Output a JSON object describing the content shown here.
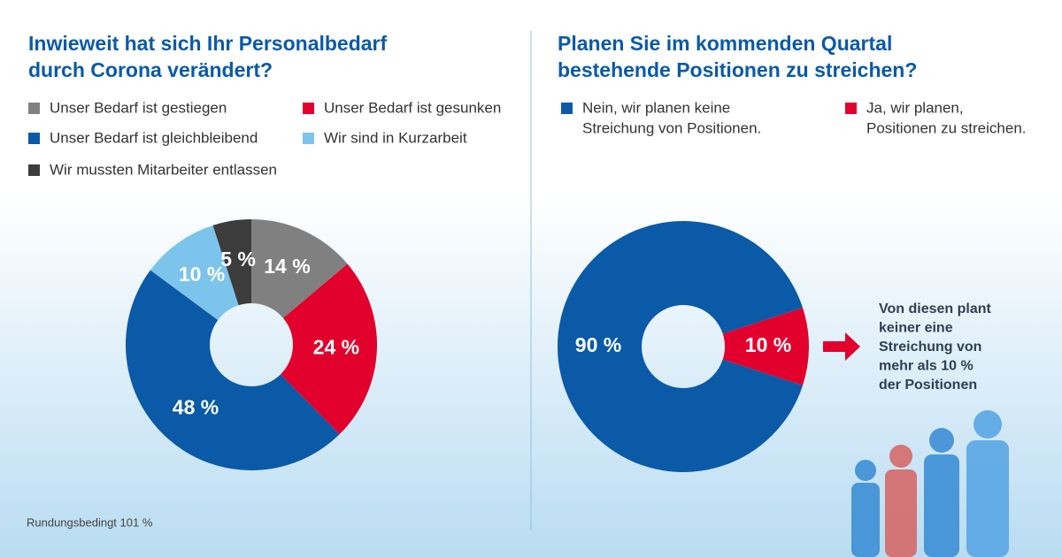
{
  "chart_data": [
    {
      "type": "donut",
      "title": [
        "Inwieweit hat sich Ihr Personalbedarf",
        "durch Corona verändert?"
      ],
      "categories": [
        [
          "Unser Bedarf ist gestiegen"
        ],
        [
          "Unser Bedarf ist gesunken"
        ],
        [
          "Unser Bedarf ist gleichbleibend"
        ],
        [
          "Wir sind in Kurzarbeit"
        ],
        [
          "Wir mussten Mitarbeiter entlassen"
        ]
      ],
      "values": [
        14,
        24,
        48,
        10,
        5
      ],
      "value_labels": [
        "14 %",
        "24 %",
        "48 %",
        "10 %",
        "5 %"
      ],
      "colors": [
        "#808080",
        "#e2002d",
        "#0a5aa8",
        "#7cc4ec",
        "#3c3c3c"
      ],
      "startangle": 0,
      "note": "Rundungsbedingt 101 %"
    },
    {
      "type": "donut",
      "title": [
        "Planen Sie im kommenden Quartal",
        "bestehende Positionen zu streichen?"
      ],
      "categories": [
        [
          "Nein, wir planen keine",
          "Streichung von Positionen."
        ],
        [
          "Ja, wir planen,",
          "Positionen zu streichen."
        ]
      ],
      "values": [
        90,
        10
      ],
      "value_labels": [
        "90 %",
        "10 %"
      ],
      "colors": [
        "#0a5aa8",
        "#e2002d"
      ],
      "startangle": 108,
      "annotation": [
        "Von diesen plant",
        "keiner eine",
        "Streichung von",
        "mehr als 10 %",
        "der Positionen"
      ]
    }
  ]
}
